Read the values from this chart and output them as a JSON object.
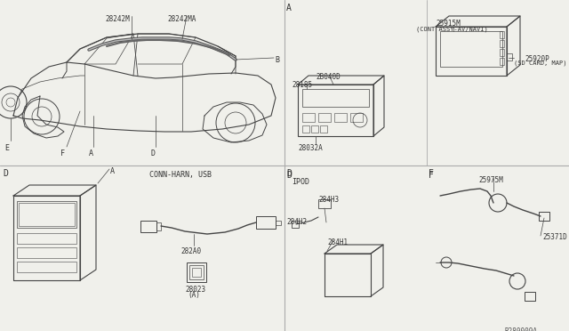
{
  "bg_color": "#f0f0eb",
  "line_color": "#444444",
  "text_color": "#333333",
  "ref_code": "R280009A",
  "labels": {
    "car_harness_1": "28242M",
    "car_harness_2": "28242MA",
    "car_B": "B",
    "car_E": "E",
    "car_D": "D",
    "car_F": "F",
    "car_A": "A",
    "radio_unit": "28185",
    "radio_bracket": "2B040D",
    "navi_unit": "25915M",
    "navi_desc": "(CONT ASSY-AV/NAVI)",
    "sd_card": "25920P",
    "sd_card_desc": "(SD CARD, MAP)",
    "radio_base": "28032A",
    "conn_harn_usb": "CONN-HARN, USB",
    "usb_cable": "282A0",
    "usb_connector_1": "28023",
    "usb_connector_2": "(A)",
    "ipod_label": "IPOD",
    "ipod_part1": "284H3",
    "ipod_part2": "284H2",
    "ipod_part3": "284H1",
    "antenna_part": "25975M",
    "antenna_sub": "25371D",
    "sec_A": "A",
    "sec_D1": "D",
    "sec_D2": "D",
    "sec_F": "F"
  }
}
